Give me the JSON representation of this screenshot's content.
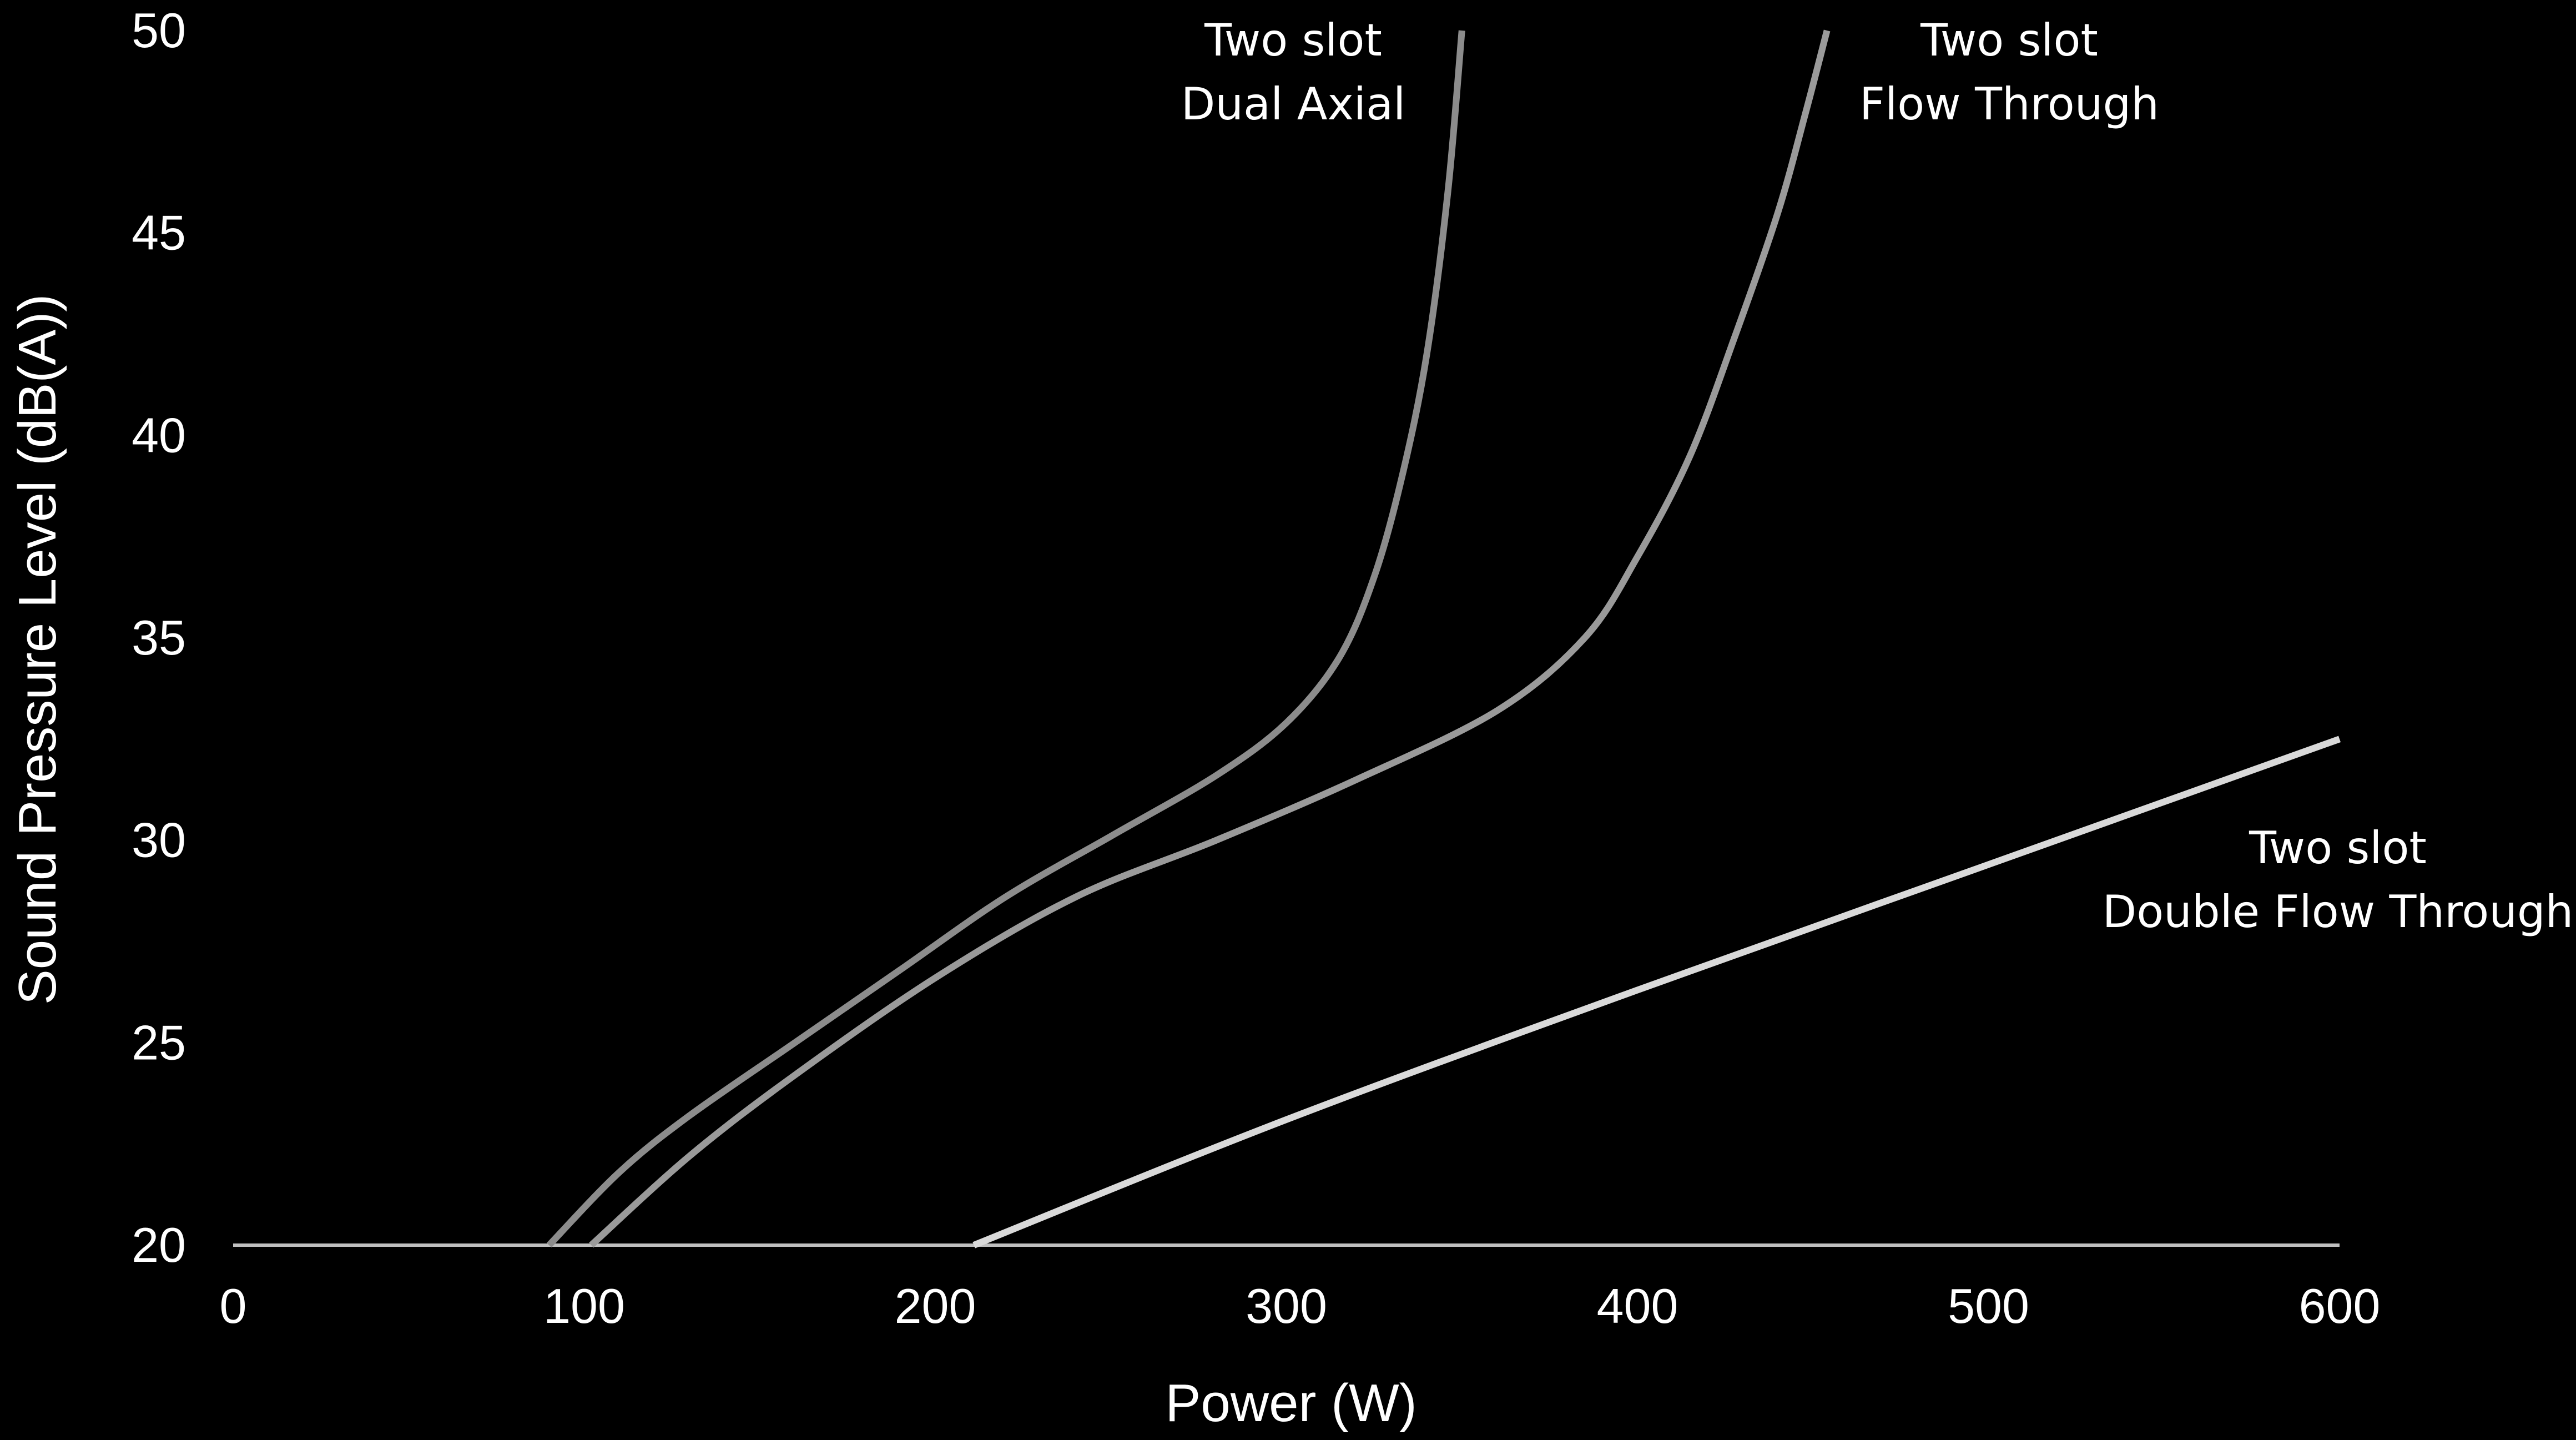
{
  "chart_data": {
    "type": "line",
    "title": "",
    "xlabel": "Power (W)",
    "ylabel": "Sound Pressure Level (dB(A))",
    "xlim": [
      0,
      600
    ],
    "ylim": [
      20,
      50
    ],
    "xticks": [
      "0",
      "100",
      "200",
      "300",
      "400",
      "500",
      "600"
    ],
    "yticks": [
      "20",
      "25",
      "30",
      "35",
      "40",
      "45",
      "50"
    ],
    "grid": false,
    "legend": "none",
    "series": [
      {
        "name": "Two slot\nDual Axial",
        "label_lines": [
          "Two slot",
          "Dual Axial"
        ],
        "color": "#8c8c8c",
        "points": [
          [
            90,
            20
          ],
          [
            110,
            21.8
          ],
          [
            130,
            23.2
          ],
          [
            160,
            25
          ],
          [
            190,
            26.8
          ],
          [
            220,
            28.6
          ],
          [
            250,
            30.1
          ],
          [
            280,
            31.6
          ],
          [
            300,
            32.9
          ],
          [
            315,
            34.5
          ],
          [
            325,
            36.5
          ],
          [
            333,
            39
          ],
          [
            340,
            42
          ],
          [
            346,
            46
          ],
          [
            350,
            50
          ]
        ]
      },
      {
        "name": "Two slot\nFlow Through",
        "label_lines": [
          "Two slot",
          "Flow Through"
        ],
        "color": "#9a9a9a",
        "points": [
          [
            102,
            20
          ],
          [
            130,
            22.2
          ],
          [
            160,
            24.2
          ],
          [
            200,
            26.6
          ],
          [
            240,
            28.6
          ],
          [
            280,
            30
          ],
          [
            320,
            31.5
          ],
          [
            360,
            33.2
          ],
          [
            385,
            35
          ],
          [
            400,
            37
          ],
          [
            415,
            39.5
          ],
          [
            428,
            42.5
          ],
          [
            440,
            45.5
          ],
          [
            448,
            48
          ],
          [
            454,
            50
          ]
        ]
      },
      {
        "name": "Two slot\nDouble Flow Through",
        "label_lines": [
          "Two slot",
          "Double Flow Through"
        ],
        "color": "#d9d9d9",
        "points": [
          [
            211,
            20
          ],
          [
            300,
            23.1
          ],
          [
            400,
            26.3
          ],
          [
            500,
            29.4
          ],
          [
            600,
            32.5
          ]
        ]
      }
    ]
  }
}
